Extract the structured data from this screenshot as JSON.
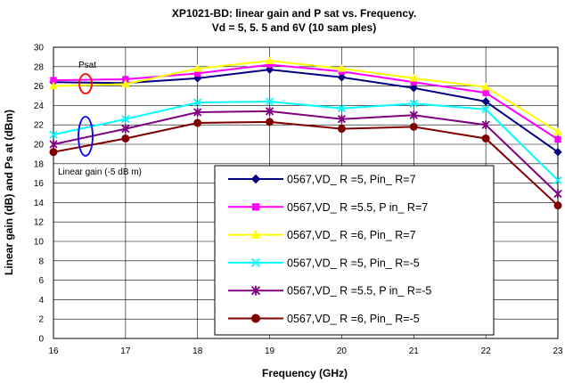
{
  "chart_data": {
    "type": "line",
    "title": "XP1021-BD:  linear gain and P sat vs. Frequency.",
    "subtitle": "Vd = 5, 5. 5 and 6V (10 sam ples)",
    "xlabel": "Frequency (GHz)",
    "ylabel": "Linear gain (dB) and Ps at (dBm)",
    "x": [
      16,
      17,
      18,
      19,
      20,
      21,
      22,
      23
    ],
    "xlim": [
      16,
      23
    ],
    "ylim": [
      0,
      30
    ],
    "yticks": [
      0,
      2,
      4,
      6,
      8,
      10,
      12,
      14,
      16,
      18,
      20,
      22,
      24,
      26,
      28,
      30
    ],
    "grid": true,
    "legend_position": "lower-center",
    "series": [
      {
        "name": "0567,VD_ R =5, Pin_ R=7",
        "color": "#000080",
        "marker": "diamond",
        "values": [
          26.4,
          26.3,
          26.8,
          27.7,
          26.9,
          25.8,
          24.4,
          19.2
        ]
      },
      {
        "name": "0567,VD_ R =5.5, P in_ R=7",
        "color": "#ff00ff",
        "marker": "square",
        "values": [
          26.6,
          26.7,
          27.3,
          28.2,
          27.5,
          26.4,
          25.3,
          20.5
        ]
      },
      {
        "name": "0567,VD_ R =6, Pin_ R=7",
        "color": "#ffff00",
        "marker": "triangle",
        "values": [
          26.0,
          26.2,
          27.8,
          28.6,
          27.8,
          26.8,
          25.9,
          21.3
        ]
      },
      {
        "name": "0567,VD_ R =5, Pin_ R=-5",
        "color": "#00ffff",
        "marker": "x",
        "values": [
          21.0,
          22.6,
          24.3,
          24.4,
          23.7,
          24.2,
          23.6,
          16.3
        ]
      },
      {
        "name": "0567,VD_ R =5.5, P in_ R=-5",
        "color": "#800080",
        "marker": "star",
        "values": [
          20.0,
          21.6,
          23.3,
          23.4,
          22.6,
          23.0,
          22.0,
          14.9
        ]
      },
      {
        "name": "0567,VD_ R =6, Pin_ R=-5",
        "color": "#800000",
        "marker": "circle",
        "values": [
          19.2,
          20.6,
          22.2,
          22.3,
          21.6,
          21.8,
          20.6,
          13.7
        ]
      }
    ],
    "annotations": [
      {
        "label": "Psat"
      },
      {
        "label": "Linear gain (-5 dB m)"
      }
    ]
  }
}
